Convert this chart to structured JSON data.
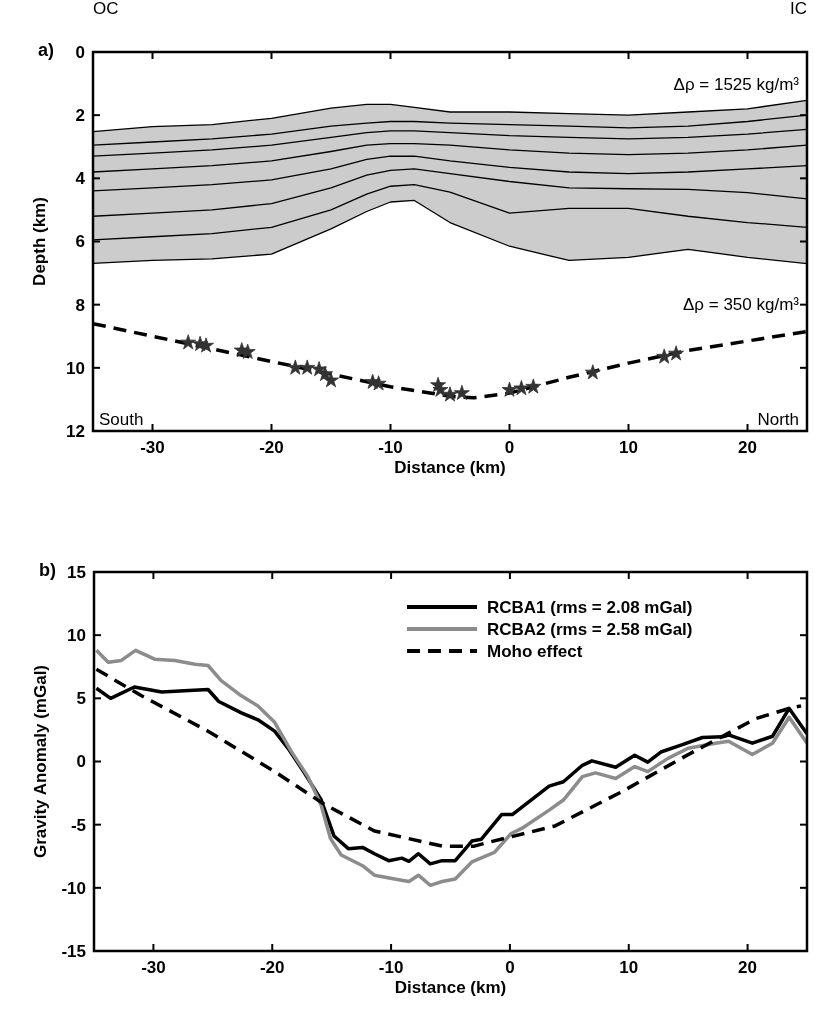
{
  "chart_data": [
    {
      "type": "line",
      "title": "a)",
      "xlabel": "Distance (km)",
      "ylabel": "Depth (km)",
      "xlim": [
        -35,
        25
      ],
      "xticks": [
        -30,
        -20,
        -10,
        0,
        10,
        20
      ],
      "ylim": [
        12,
        0
      ],
      "yticks": [
        0,
        2,
        4,
        6,
        8,
        10,
        12
      ],
      "x": [
        -35,
        -30,
        -25,
        -20,
        -15,
        -12,
        -10,
        -8,
        -5,
        0,
        5,
        10,
        15,
        20,
        25
      ],
      "annotations": [
        "OC",
        "IC",
        "Δρ = 1525 kg/m³",
        "Δρ = 350 kg/m³",
        "South",
        "North"
      ],
      "series": [
        {
          "color": "#000000",
          "values": [
            2.52,
            2.36,
            2.3,
            2.1,
            1.78,
            1.66,
            1.66,
            1.75,
            1.9,
            1.9,
            1.95,
            2.0,
            1.9,
            1.8,
            1.53
          ],
          "lower": [
            2.52,
            2.36,
            2.3,
            2.1,
            1.78,
            1.66,
            1.66,
            1.75,
            1.9,
            1.9,
            1.95,
            2.0,
            1.9,
            1.8,
            1.53
          ],
          "upper": [
            6.69,
            6.6,
            6.55,
            6.4,
            5.6,
            5.05,
            4.75,
            4.7,
            5.4,
            6.15,
            6.6,
            6.5,
            6.25,
            6.5,
            6.7
          ]
        },
        {
          "color": "#000000",
          "values": [
            2.95,
            2.85,
            2.75,
            2.6,
            2.35,
            2.25,
            2.2,
            2.2,
            2.25,
            2.3,
            2.35,
            2.4,
            2.35,
            2.2,
            2.0
          ]
        },
        {
          "color": "#000000",
          "values": [
            3.3,
            3.2,
            3.1,
            2.95,
            2.7,
            2.55,
            2.5,
            2.5,
            2.55,
            2.65,
            2.7,
            2.75,
            2.7,
            2.6,
            2.45
          ]
        },
        {
          "color": "#000000",
          "values": [
            3.8,
            3.7,
            3.6,
            3.45,
            3.15,
            2.95,
            2.9,
            2.9,
            2.95,
            3.1,
            3.2,
            3.25,
            3.2,
            3.1,
            2.95
          ]
        },
        {
          "color": "#000000",
          "values": [
            4.4,
            4.3,
            4.2,
            4.05,
            3.7,
            3.4,
            3.3,
            3.3,
            3.45,
            3.65,
            3.8,
            3.85,
            3.8,
            3.7,
            3.6
          ]
        },
        {
          "color": "#000000",
          "values": [
            5.2,
            5.1,
            5.0,
            4.8,
            4.3,
            3.9,
            3.75,
            3.7,
            3.85,
            4.1,
            4.3,
            4.33,
            4.35,
            4.45,
            4.65
          ]
        },
        {
          "color": "#000000",
          "values": [
            5.95,
            5.85,
            5.75,
            5.55,
            5.0,
            4.5,
            4.25,
            4.2,
            4.44,
            5.1,
            4.95,
            4.95,
            5.2,
            5.4,
            5.55
          ]
        },
        {
          "color": "#000000",
          "values": [
            6.69,
            6.6,
            6.55,
            6.4,
            5.6,
            5.05,
            4.75,
            4.7,
            5.4,
            6.15,
            6.6,
            6.5,
            6.25,
            6.5,
            6.7
          ]
        },
        {
          "color": "#000000",
          "line_style": "dashed",
          "x": [
            -35,
            -30,
            -25,
            -20,
            -15,
            -10,
            -5,
            -3,
            0,
            5,
            10,
            15,
            20,
            25
          ],
          "values": [
            8.6,
            9.0,
            9.4,
            9.8,
            10.2,
            10.6,
            10.9,
            10.95,
            10.8,
            10.3,
            9.85,
            9.45,
            9.15,
            8.85
          ]
        },
        {
          "type": "scatter",
          "marker": "star",
          "color": "#333333",
          "x": [
            -27,
            -26,
            -25.5,
            -22.5,
            -22,
            -18,
            -17,
            -16,
            -15.5,
            -15,
            -11.5,
            -11,
            -6,
            -5.8,
            -5,
            -4,
            0,
            1,
            2,
            7,
            13,
            14
          ],
          "values": [
            9.2,
            9.25,
            9.3,
            9.45,
            9.5,
            10.0,
            10.0,
            10.05,
            10.2,
            10.4,
            10.45,
            10.5,
            10.55,
            10.7,
            10.85,
            10.8,
            10.7,
            10.65,
            10.6,
            10.15,
            9.65,
            9.55
          ]
        }
      ]
    },
    {
      "type": "line",
      "title": "b)",
      "xlabel": "Distance (km)",
      "ylabel": "Gravity Anomaly (mGal)",
      "xlim": [
        -35,
        25
      ],
      "xticks": [
        -30,
        -20,
        -10,
        0,
        10,
        20
      ],
      "ylim": [
        -15,
        15
      ],
      "yticks": [
        -15,
        -10,
        -5,
        0,
        5,
        10,
        15
      ],
      "legend": "top right",
      "series": [
        {
          "name": "RCBA1 (rms = 2.08 mGal)",
          "color": "#000000",
          "x": [
            -34.8,
            -33.6,
            -31.6,
            -29.3,
            -27.4,
            -25.4,
            -24.5,
            -22.6,
            -21.2,
            -19.8,
            -18.6,
            -17.3,
            -15.9,
            -14.8,
            -13.6,
            -12.4,
            -11.4,
            -10.2,
            -9.1,
            -8.5,
            -7.7,
            -6.7,
            -5.7,
            -4.6,
            -3.2,
            -2.4,
            -0.7,
            0.2,
            3.3,
            4.5,
            6.1,
            6.9,
            8.9,
            10.5,
            11.6,
            12.7,
            14.4,
            16.2,
            17.9,
            18.4,
            20.4,
            22.1,
            23.5,
            25
          ],
          "values": [
            5.8,
            5.0,
            5.9,
            5.5,
            5.6,
            5.7,
            4.75,
            3.85,
            3.3,
            2.4,
            0.95,
            -0.9,
            -3.0,
            -5.9,
            -6.9,
            -6.8,
            -7.3,
            -7.85,
            -7.65,
            -7.9,
            -7.3,
            -8.1,
            -7.85,
            -7.85,
            -6.3,
            -6.15,
            -4.2,
            -4.2,
            -1.95,
            -1.6,
            -0.3,
            0.05,
            -0.45,
            0.5,
            -0.05,
            0.75,
            1.3,
            1.9,
            1.95,
            2.1,
            1.45,
            2.0,
            4.2,
            2.2
          ]
        },
        {
          "name": "RCBA2 (rms = 2.58 mGal)",
          "color": "#8c8c8c",
          "x": [
            -34.8,
            -33.8,
            -32.7,
            -31.5,
            -29.9,
            -28.2,
            -26.5,
            -25.4,
            -24.3,
            -22.6,
            -21.2,
            -19.8,
            -18.4,
            -17.0,
            -15.9,
            -15.1,
            -14.2,
            -12.4,
            -11.4,
            -9.7,
            -8.5,
            -7.7,
            -6.7,
            -5.7,
            -4.6,
            -3.2,
            -1.3,
            0.1,
            1.0,
            3.3,
            4.5,
            6.1,
            7.2,
            8.9,
            10.5,
            11.6,
            13.3,
            15.0,
            17.3,
            18.4,
            20.4,
            22.1,
            23.5,
            25
          ],
          "values": [
            8.8,
            7.85,
            8.0,
            8.8,
            8.1,
            8.0,
            7.7,
            7.6,
            6.4,
            5.2,
            4.4,
            3.1,
            0.8,
            -1.2,
            -3.4,
            -6.1,
            -7.4,
            -8.25,
            -9.0,
            -9.3,
            -9.5,
            -9.0,
            -9.8,
            -9.5,
            -9.3,
            -7.95,
            -7.2,
            -5.7,
            -5.3,
            -3.85,
            -3.05,
            -1.2,
            -0.9,
            -1.35,
            -0.4,
            -0.8,
            0.25,
            1.05,
            1.45,
            1.6,
            0.55,
            1.45,
            3.5,
            1.45
          ]
        },
        {
          "name": "Moho effect",
          "color": "#000000",
          "line_style": "dashed",
          "x": [
            -34.8,
            -31.0,
            -25.4,
            -19.8,
            -15.6,
            -11.4,
            -5.7,
            -3,
            -1.8,
            3.8,
            9.4,
            15.1,
            20.7,
            23.5,
            24.5
          ],
          "values": [
            7.3,
            5.2,
            2.4,
            -0.8,
            -3.4,
            -5.5,
            -6.7,
            -6.7,
            -6.4,
            -5.1,
            -2.4,
            0.6,
            3.4,
            4.2,
            4.4
          ]
        }
      ]
    }
  ]
}
